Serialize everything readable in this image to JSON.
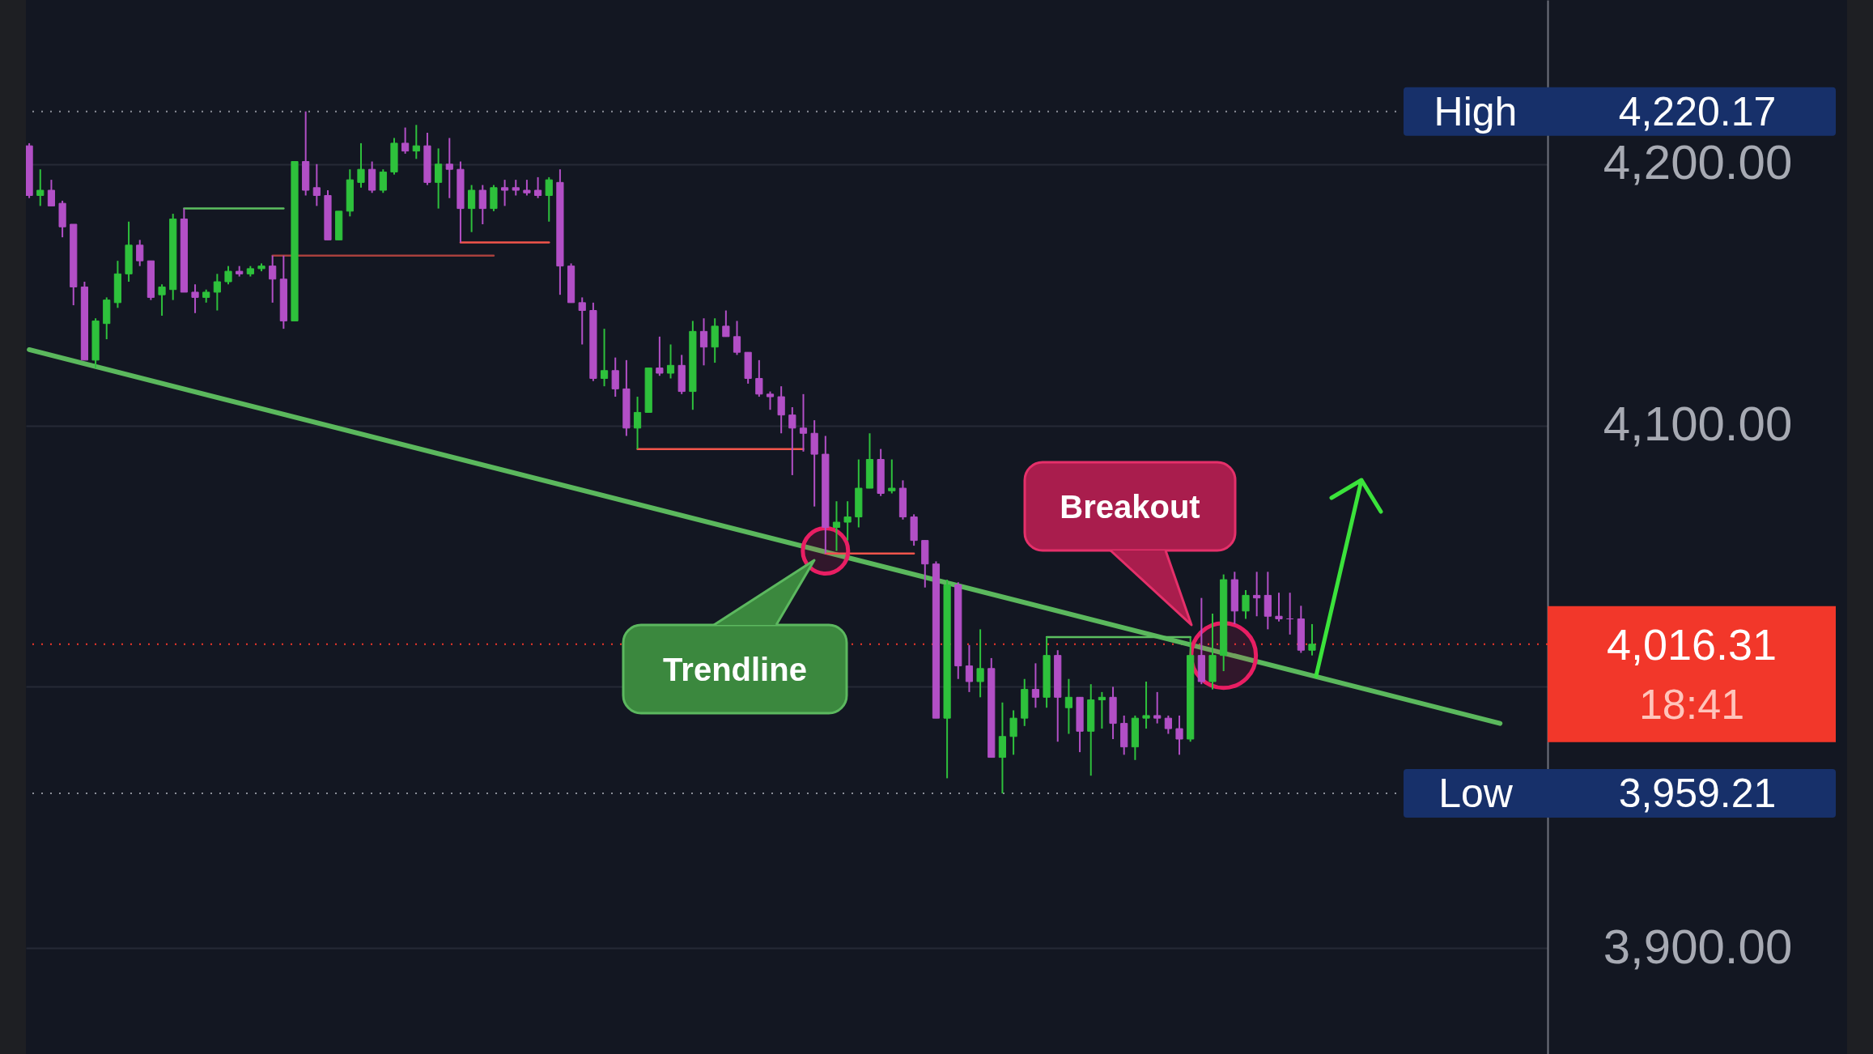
{
  "chart_data": {
    "type": "candlestick",
    "categories": [
      null,
      null,
      null,
      null,
      null,
      null,
      null,
      null,
      null,
      null,
      null,
      null,
      null,
      null,
      null,
      null,
      null,
      null,
      null,
      null,
      null,
      null,
      null,
      null,
      null,
      null,
      null,
      null,
      null,
      null,
      null,
      null,
      null,
      null,
      null,
      null,
      null,
      null,
      null,
      null,
      null,
      null,
      null,
      null,
      null,
      null,
      null,
      null,
      null,
      null,
      null,
      null,
      null,
      null,
      null,
      null,
      null,
      null,
      null,
      null,
      null,
      null,
      null,
      null,
      null,
      null,
      null,
      null,
      null,
      null,
      null,
      null,
      null,
      null,
      null,
      null,
      null,
      null,
      null,
      null,
      null,
      null,
      null,
      null,
      null,
      null,
      null,
      null,
      null,
      null,
      null,
      null,
      null,
      null,
      null,
      null,
      null,
      null,
      null,
      null,
      null,
      null,
      null,
      null,
      null,
      null,
      null,
      null,
      null,
      null,
      null,
      null,
      null,
      null,
      null,
      null,
      null,
      null,
      null,
      null,
      null,
      null,
      null,
      null,
      null,
      null,
      null,
      null,
      null,
      null,
      null,
      null,
      null,
      null,
      null,
      null,
      null,
      null
    ],
    "ohlc": [
      [
        4207,
        4208,
        4187,
        4188
      ],
      [
        4188,
        4198,
        4184,
        4190
      ],
      [
        4190,
        4194,
        4184,
        4184
      ],
      [
        4185,
        4186,
        4172,
        4176
      ],
      [
        4177,
        4177,
        4146,
        4153
      ],
      [
        4153,
        4155,
        4125,
        4125
      ],
      [
        4125,
        4141,
        4122,
        4140
      ],
      [
        4139,
        4149,
        4133,
        4148
      ],
      [
        4147,
        4163,
        4145,
        4158
      ],
      [
        4158,
        4178,
        4155,
        4169
      ],
      [
        4169,
        4171,
        4161,
        4163
      ],
      [
        4163,
        4163,
        4148,
        4149
      ],
      [
        4150,
        4154,
        4142,
        4153
      ],
      [
        4152,
        4181,
        4148,
        4179
      ],
      [
        4179,
        4183,
        4151,
        4151
      ],
      [
        4151,
        4154,
        4143,
        4149
      ],
      [
        4149,
        4152,
        4147,
        4151
      ],
      [
        4151,
        4158,
        4144,
        4155
      ],
      [
        4155,
        4161,
        4154,
        4159
      ],
      [
        4159,
        4161,
        4157,
        4158
      ],
      [
        4158,
        4161,
        4157,
        4160
      ],
      [
        4160,
        4162,
        4159,
        4161
      ],
      [
        4161,
        4165,
        4147,
        4156
      ],
      [
        4156,
        4165,
        4137,
        4140
      ],
      [
        4140,
        4201,
        4140,
        4201
      ],
      [
        4201,
        4220.17,
        4188,
        4190
      ],
      [
        4191,
        4200,
        4184,
        4188
      ],
      [
        4188,
        4190,
        4171,
        4171
      ],
      [
        4171,
        4182,
        4171,
        4182
      ],
      [
        4182,
        4198,
        4180,
        4194
      ],
      [
        4193,
        4208,
        4191,
        4198
      ],
      [
        4198,
        4201,
        4189,
        4190
      ],
      [
        4190,
        4198,
        4189,
        4197
      ],
      [
        4197,
        4210,
        4196,
        4208
      ],
      [
        4208,
        4214,
        4204,
        4205
      ],
      [
        4205,
        4215,
        4202,
        4207
      ],
      [
        4207,
        4212,
        4192,
        4193
      ],
      [
        4193,
        4206,
        4183,
        4200
      ],
      [
        4200,
        4210,
        4187,
        4198
      ],
      [
        4198,
        4201,
        4170,
        4183
      ],
      [
        4183,
        4192,
        4174,
        4190
      ],
      [
        4190,
        4192,
        4177,
        4183
      ],
      [
        4183,
        4192,
        4182,
        4191
      ],
      [
        4191,
        4194,
        4184,
        4190
      ],
      [
        4191,
        4194,
        4188,
        4190
      ],
      [
        4190,
        4194,
        4188,
        4189
      ],
      [
        4190,
        4195,
        4187,
        4188
      ],
      [
        4188,
        4195,
        4178,
        4194
      ],
      [
        4193,
        4198,
        4150,
        4161
      ],
      [
        4161,
        4162,
        4147,
        4147
      ],
      [
        4147,
        4149,
        4131,
        4144
      ],
      [
        4144,
        4147,
        4117,
        4118
      ],
      [
        4118,
        4137,
        4115,
        4121
      ],
      [
        4121,
        4126,
        4111,
        4114
      ],
      [
        4114,
        4125,
        4096,
        4099
      ],
      [
        4099,
        4111,
        4091,
        4105
      ],
      [
        4105,
        4122,
        4105,
        4122
      ],
      [
        4122,
        4134,
        4119,
        4120
      ],
      [
        4120,
        4131,
        4118,
        4123
      ],
      [
        4123,
        4127,
        4112,
        4113
      ],
      [
        4113,
        4140,
        4106,
        4136
      ],
      [
        4136,
        4141,
        4123,
        4130
      ],
      [
        4130,
        4141,
        4124,
        4138
      ],
      [
        4138,
        4144,
        4134,
        4134
      ],
      [
        4134,
        4140,
        4127,
        4128
      ],
      [
        4128,
        4128,
        4116,
        4118
      ],
      [
        4118,
        4125,
        4111,
        4112
      ],
      [
        4112,
        4113,
        4106,
        4111
      ],
      [
        4111,
        4115,
        4097,
        4104
      ],
      [
        4104,
        4107,
        4081,
        4099
      ],
      [
        4099,
        4112,
        4090,
        4097
      ],
      [
        4097,
        4102,
        4069,
        4089
      ],
      [
        4089,
        4096,
        4051,
        4061
      ],
      [
        4061,
        4071,
        4052,
        4063
      ],
      [
        4063,
        4071,
        4056,
        4065
      ],
      [
        4065,
        4087,
        4061,
        4076
      ],
      [
        4076,
        4097,
        4076,
        4087
      ],
      [
        4087,
        4091,
        4073,
        4074
      ],
      [
        4075,
        4087,
        4074,
        4076
      ],
      [
        4076,
        4079,
        4064,
        4065
      ],
      [
        4065,
        4066,
        4054,
        4056
      ],
      [
        4056,
        4056,
        4038,
        4047
      ],
      [
        4047,
        4048,
        3988,
        3988
      ],
      [
        3988,
        4041,
        3965,
        4039
      ],
      [
        4039,
        4040,
        4003,
        4008
      ],
      [
        4008,
        4016,
        3998,
        4002
      ],
      [
        4002,
        4022,
        3996,
        4007
      ],
      [
        4007,
        4011,
        3973,
        3973
      ],
      [
        3973,
        3994,
        3959.21,
        3981
      ],
      [
        3981,
        3991,
        3974,
        3988
      ],
      [
        3988,
        4003,
        3985,
        3999
      ],
      [
        3999,
        4009,
        3992,
        3996
      ],
      [
        3996,
        4019,
        3992,
        4012
      ],
      [
        4012,
        4014,
        3979,
        3996
      ],
      [
        3992,
        4003,
        3982,
        3996
      ],
      [
        3996,
        3996,
        3975,
        3983
      ],
      [
        3983,
        4001,
        3966,
        3995
      ],
      [
        3995,
        3998,
        3984,
        3996
      ],
      [
        3996,
        4000,
        3980,
        3986
      ],
      [
        3986,
        3989,
        3974,
        3977
      ],
      [
        3977,
        3989,
        3972,
        3988
      ],
      [
        3988,
        4002,
        3984,
        3989
      ],
      [
        3989,
        3998,
        3986,
        3988
      ],
      [
        3988,
        3989,
        3982,
        3984
      ],
      [
        3984,
        3989,
        3974,
        3980
      ],
      [
        3980,
        4019,
        3979,
        4012
      ],
      [
        4012,
        4034,
        4001,
        4002
      ],
      [
        4002,
        4028,
        3999,
        4012
      ],
      [
        4012,
        4043,
        4006,
        4041
      ],
      [
        4041,
        4044,
        4024,
        4029
      ],
      [
        4029,
        4037,
        4026,
        4035
      ],
      [
        4035,
        4044,
        4027,
        4034
      ],
      [
        4035,
        4044,
        4022,
        4027
      ],
      [
        4027,
        4036,
        4025,
        4026
      ],
      [
        4026,
        4036,
        4020,
        4026
      ],
      [
        4026,
        4031,
        4013,
        4014
      ],
      [
        4014,
        4024,
        4012,
        4016.31
      ],
      null,
      null,
      null,
      null,
      null,
      null,
      null,
      null,
      null,
      null,
      null,
      null,
      null,
      null,
      null,
      null,
      null,
      null,
      null,
      null,
      null
    ],
    "colors": [
      "#b24fc6",
      "#2ec13c",
      "#b24fc6",
      "#b24fc6",
      "#b24fc6",
      "#b24fc6",
      "#2ec13c",
      "#2ec13c",
      "#2ec13c",
      "#2ec13c",
      "#b24fc6",
      "#b24fc6",
      "#2ec13c",
      "#2ec13c",
      "#b24fc6",
      "#b24fc6",
      "#2ec13c",
      "#2ec13c",
      "#2ec13c",
      "#b24fc6",
      "#2ec13c",
      "#2ec13c",
      "#b24fc6",
      "#b24fc6",
      "#2ec13c",
      "#b24fc6",
      "#b24fc6",
      "#b24fc6",
      "#2ec13c",
      "#2ec13c",
      "#2ec13c",
      "#b24fc6",
      "#2ec13c",
      "#2ec13c",
      "#b24fc6",
      "#2ec13c",
      "#b24fc6",
      "#2ec13c",
      "#b24fc6",
      "#b24fc6",
      "#2ec13c",
      "#b24fc6",
      "#2ec13c",
      "#b24fc6",
      "#b24fc6",
      "#b24fc6",
      "#b24fc6",
      "#2ec13c",
      "#b24fc6",
      "#b24fc6",
      "#b24fc6",
      "#b24fc6",
      "#2ec13c",
      "#b24fc6",
      "#b24fc6",
      "#2ec13c",
      "#2ec13c",
      "#b24fc6",
      "#2ec13c",
      "#b24fc6",
      "#2ec13c",
      "#b24fc6",
      "#2ec13c",
      "#b24fc6",
      "#b24fc6",
      "#b24fc6",
      "#b24fc6",
      "#b24fc6",
      "#b24fc6",
      "#b24fc6",
      "#b24fc6",
      "#b24fc6",
      "#b24fc6",
      "#2ec13c",
      "#2ec13c",
      "#2ec13c",
      "#2ec13c",
      "#b24fc6",
      "#2ec13c",
      "#b24fc6",
      "#b24fc6",
      "#b24fc6",
      "#b24fc6",
      "#2ec13c",
      "#b24fc6",
      "#b24fc6",
      "#2ec13c",
      "#b24fc6",
      "#2ec13c",
      "#2ec13c",
      "#2ec13c",
      "#b24fc6",
      "#2ec13c",
      "#b24fc6",
      "#2ec13c",
      "#b24fc6",
      "#2ec13c",
      "#2ec13c",
      "#b24fc6",
      "#b24fc6",
      "#2ec13c",
      "#2ec13c",
      "#b24fc6",
      "#b24fc6",
      "#b24fc6",
      "#2ec13c",
      "#b24fc6",
      "#2ec13c",
      "#2ec13c",
      "#b24fc6",
      "#2ec13c",
      "#b24fc6",
      "#b24fc6",
      "#b24fc6",
      "#b24fc6",
      "#b24fc6",
      "#2ec13c",
      null,
      null,
      null,
      null,
      null,
      null,
      null,
      null,
      null,
      null,
      null,
      null,
      null,
      null,
      null,
      null,
      null,
      null,
      null,
      null,
      null
    ],
    "series": [
      {
        "type": "line",
        "color": "#5bb85d",
        "values": [
          4129,
          null,
          null,
          null,
          null,
          null,
          null,
          null,
          null,
          null,
          null,
          null,
          null,
          null,
          null,
          null,
          null,
          null,
          null,
          null,
          null,
          null,
          null,
          null,
          null,
          null,
          null,
          null,
          null,
          null,
          null,
          null,
          null,
          null,
          null,
          null,
          null,
          null,
          null,
          null,
          null,
          null,
          null,
          null,
          null,
          null,
          null,
          null,
          null,
          null,
          null,
          null,
          null,
          null,
          null,
          null,
          null,
          null,
          null,
          null,
          null,
          null,
          null,
          null,
          null,
          null,
          null,
          null,
          null,
          null,
          null,
          null,
          null,
          null,
          null,
          null,
          null,
          null,
          null,
          null,
          null,
          null,
          null,
          null,
          null,
          null,
          null,
          null,
          null,
          null,
          null,
          null,
          null,
          null,
          null,
          null,
          null,
          null,
          null,
          null,
          null,
          null,
          null,
          null,
          null,
          null,
          null,
          null,
          null,
          null,
          null,
          null,
          null,
          null,
          null,
          null,
          null,
          null,
          null,
          null,
          null,
          null,
          null,
          null,
          null,
          null,
          null,
          null,
          null,
          null,
          null,
          null,
          null,
          3986,
          null,
          null,
          null,
          null
        ]
      },
      {
        "type": "line",
        "color": "#5cbf60",
        "values": [
          null,
          null,
          null,
          null,
          null,
          null,
          null,
          null,
          null,
          null,
          null,
          null,
          null,
          null,
          4183,
          null,
          null,
          null,
          null,
          null,
          null,
          null,
          null,
          4183,
          null,
          null,
          null,
          null,
          null,
          null,
          null,
          null,
          null,
          null,
          null,
          null,
          null,
          null,
          null,
          null,
          null,
          null,
          null,
          null,
          null,
          null,
          null,
          null,
          null,
          null,
          null,
          null,
          null,
          null,
          null,
          null,
          null,
          null,
          null,
          null,
          null,
          null,
          null,
          null,
          null,
          null,
          null,
          null,
          null,
          null,
          null,
          null,
          null,
          null,
          null,
          null,
          null,
          null,
          null,
          null,
          null,
          null,
          null,
          null,
          null,
          null,
          null,
          null,
          null,
          null,
          null,
          null,
          null,
          null,
          null,
          null,
          null,
          null,
          null,
          null,
          null,
          null,
          null,
          null,
          null,
          null,
          null,
          null,
          null,
          null,
          null,
          null,
          null,
          null,
          null,
          null,
          null,
          null,
          null,
          null,
          null,
          null,
          null,
          null,
          null,
          null,
          null,
          null,
          null,
          null,
          null,
          null,
          null,
          null,
          null,
          null,
          null,
          null
        ]
      },
      {
        "type": "line",
        "color": "#a8403d",
        "values": [
          null,
          null,
          null,
          null,
          null,
          null,
          null,
          null,
          null,
          null,
          null,
          null,
          null,
          null,
          null,
          null,
          null,
          null,
          null,
          null,
          null,
          null,
          4165,
          null,
          null,
          null,
          null,
          null,
          null,
          null,
          null,
          null,
          null,
          null,
          null,
          null,
          null,
          null,
          null,
          null,
          null,
          null,
          4165,
          null,
          null,
          null,
          null,
          null,
          null,
          null,
          null,
          null,
          null,
          null,
          null,
          null,
          null,
          null,
          null,
          null,
          null,
          null,
          null,
          null,
          null,
          null,
          null,
          null,
          null,
          null,
          null,
          null,
          null,
          null,
          null,
          null,
          null,
          null,
          null,
          null,
          null,
          null,
          null,
          null,
          null,
          null,
          null,
          null,
          null,
          null,
          null,
          null,
          null,
          null,
          null,
          null,
          null,
          null,
          null,
          null,
          null,
          null,
          null,
          null,
          null,
          null,
          null,
          null,
          null,
          null,
          null,
          null,
          null,
          null,
          null,
          null,
          null,
          null,
          null,
          null,
          null,
          null,
          null,
          null,
          null,
          null,
          null,
          null,
          null,
          null,
          null,
          null,
          null,
          null,
          null,
          null,
          null,
          null
        ]
      },
      {
        "type": "line",
        "color": "#f2554b",
        "values": [
          null,
          null,
          null,
          null,
          null,
          null,
          null,
          null,
          null,
          null,
          null,
          null,
          null,
          null,
          null,
          null,
          null,
          null,
          null,
          null,
          null,
          null,
          null,
          null,
          null,
          null,
          null,
          null,
          null,
          null,
          null,
          null,
          null,
          null,
          null,
          null,
          null,
          null,
          null,
          4170,
          null,
          null,
          null,
          null,
          null,
          null,
          null,
          4170,
          null,
          null,
          null,
          null,
          null,
          null,
          null,
          null,
          null,
          null,
          null,
          null,
          null,
          null,
          null,
          null,
          null,
          null,
          null,
          null,
          null,
          null,
          null,
          null,
          null,
          null,
          null,
          null,
          null,
          null,
          null,
          null,
          null,
          null,
          null,
          null,
          null,
          null,
          null,
          null,
          null,
          null,
          null,
          null,
          null,
          null,
          null,
          null,
          null,
          null,
          null,
          null,
          null,
          null,
          null,
          null,
          null,
          null,
          null,
          null,
          null,
          null,
          null,
          null,
          null,
          null,
          null,
          null,
          null,
          null,
          null,
          null,
          null,
          null,
          null,
          null,
          null,
          null,
          null,
          null,
          null,
          null,
          null,
          null,
          null,
          null,
          null,
          null,
          null,
          null
        ]
      },
      {
        "type": "line",
        "color": "#f2554b",
        "values": [
          null,
          null,
          null,
          null,
          null,
          null,
          null,
          null,
          null,
          null,
          null,
          null,
          null,
          null,
          null,
          null,
          null,
          null,
          null,
          null,
          null,
          null,
          null,
          null,
          null,
          null,
          null,
          null,
          null,
          null,
          null,
          null,
          null,
          null,
          null,
          null,
          null,
          null,
          null,
          null,
          null,
          null,
          null,
          null,
          null,
          null,
          null,
          null,
          null,
          null,
          null,
          null,
          null,
          null,
          null,
          4091,
          null,
          null,
          null,
          null,
          null,
          null,
          null,
          null,
          null,
          null,
          null,
          null,
          null,
          null,
          4091,
          null,
          null,
          null,
          null,
          null,
          null,
          null,
          null,
          null,
          null,
          null,
          null,
          null,
          null,
          null,
          null,
          null,
          null,
          null,
          null,
          null,
          null,
          null,
          null,
          null,
          null,
          null,
          null,
          null,
          null,
          null,
          null,
          null,
          null,
          null,
          null,
          null,
          null,
          null,
          null,
          null,
          null,
          null,
          null,
          null,
          null,
          null,
          null,
          null,
          null,
          null,
          null,
          null,
          null,
          null,
          null,
          null,
          null,
          null,
          null,
          null,
          null,
          null,
          null,
          null,
          null,
          null
        ]
      },
      {
        "type": "line",
        "color": "#f2554b",
        "values": [
          null,
          null,
          null,
          null,
          null,
          null,
          null,
          null,
          null,
          null,
          null,
          null,
          null,
          null,
          null,
          null,
          null,
          null,
          null,
          null,
          null,
          null,
          null,
          null,
          null,
          null,
          null,
          null,
          null,
          null,
          null,
          null,
          null,
          null,
          null,
          null,
          null,
          null,
          null,
          null,
          null,
          null,
          null,
          null,
          null,
          null,
          null,
          null,
          null,
          null,
          null,
          null,
          null,
          null,
          null,
          null,
          null,
          null,
          null,
          null,
          null,
          null,
          null,
          null,
          null,
          null,
          null,
          null,
          null,
          null,
          null,
          null,
          4051,
          null,
          null,
          null,
          null,
          null,
          null,
          null,
          4051,
          null,
          null,
          null,
          null,
          null,
          null,
          null,
          null,
          null,
          null,
          null,
          null,
          null,
          null,
          null,
          null,
          null,
          null,
          null,
          null,
          null,
          null,
          null,
          null,
          null,
          null,
          null,
          null,
          null,
          null,
          null,
          null,
          null,
          null,
          null,
          null,
          null,
          null,
          null,
          null,
          null,
          null,
          null,
          null,
          null,
          null,
          null,
          null,
          null,
          null,
          null,
          null,
          null,
          null,
          null,
          null,
          null
        ]
      },
      {
        "type": "line",
        "color": "#5cbf60",
        "values": [
          null,
          null,
          null,
          null,
          null,
          null,
          null,
          null,
          null,
          null,
          null,
          null,
          null,
          null,
          null,
          null,
          null,
          null,
          null,
          null,
          null,
          null,
          null,
          null,
          null,
          null,
          null,
          null,
          null,
          null,
          null,
          null,
          null,
          null,
          null,
          null,
          null,
          null,
          null,
          null,
          null,
          null,
          null,
          null,
          null,
          null,
          null,
          null,
          null,
          null,
          null,
          null,
          null,
          null,
          null,
          null,
          null,
          null,
          null,
          null,
          null,
          null,
          null,
          null,
          null,
          null,
          null,
          null,
          null,
          null,
          null,
          null,
          null,
          null,
          null,
          null,
          null,
          null,
          null,
          null,
          null,
          null,
          null,
          null,
          null,
          null,
          null,
          null,
          null,
          null,
          null,
          null,
          4019,
          null,
          null,
          null,
          null,
          null,
          null,
          null,
          null,
          null,
          null,
          null,
          null,
          4019,
          null,
          null,
          null,
          null,
          null,
          null,
          null,
          null,
          null,
          null,
          null,
          null,
          null,
          null,
          null,
          null,
          null,
          null,
          null,
          null,
          null,
          null,
          null,
          null,
          null,
          null,
          null,
          null,
          null,
          null,
          null,
          null
        ]
      },
      {
        "type": "bubble",
        "color": "#e91e63",
        "values": [
          null,
          null,
          null,
          null,
          null,
          null,
          null,
          null,
          null,
          null,
          null,
          null,
          null,
          null,
          null,
          null,
          null,
          null,
          null,
          null,
          null,
          null,
          null,
          null,
          null,
          null,
          null,
          null,
          null,
          null,
          null,
          null,
          null,
          null,
          null,
          null,
          null,
          null,
          null,
          null,
          null,
          null,
          null,
          null,
          null,
          null,
          null,
          null,
          null,
          null,
          null,
          null,
          null,
          null,
          null,
          null,
          null,
          null,
          null,
          null,
          null,
          null,
          null,
          null,
          null,
          null,
          null,
          null,
          null,
          null,
          null,
          null,
          4052,
          null,
          null,
          null,
          null,
          null,
          null,
          null,
          null,
          null,
          null,
          null,
          null,
          null,
          null,
          null,
          null,
          null,
          null,
          null,
          null,
          null,
          null,
          null,
          null,
          null,
          null,
          null,
          null,
          null,
          null,
          null,
          null,
          null,
          null,
          null,
          4012,
          null,
          null,
          null,
          null,
          null,
          null,
          null,
          null,
          null,
          null,
          null,
          null,
          null,
          null,
          null,
          null,
          null,
          null,
          null,
          null,
          null,
          null,
          null,
          null,
          null,
          null,
          null,
          null,
          null
        ],
        "sizes": [
          null,
          null,
          null,
          null,
          null,
          null,
          null,
          null,
          null,
          null,
          null,
          null,
          null,
          null,
          null,
          null,
          null,
          null,
          null,
          null,
          null,
          null,
          null,
          null,
          null,
          null,
          null,
          null,
          null,
          null,
          null,
          null,
          null,
          null,
          null,
          null,
          null,
          null,
          null,
          null,
          null,
          null,
          null,
          null,
          null,
          null,
          null,
          null,
          null,
          null,
          null,
          null,
          null,
          null,
          null,
          null,
          null,
          null,
          null,
          null,
          null,
          null,
          null,
          null,
          null,
          null,
          null,
          null,
          null,
          null,
          null,
          null,
          0.49,
          null,
          null,
          null,
          null,
          null,
          null,
          null,
          null,
          null,
          null,
          null,
          null,
          null,
          null,
          null,
          null,
          null,
          null,
          null,
          null,
          null,
          null,
          null,
          null,
          null,
          null,
          null,
          null,
          null,
          null,
          null,
          null,
          null,
          null,
          null,
          1,
          null,
          null,
          null,
          null,
          null,
          null,
          null,
          null,
          null,
          null,
          null,
          null,
          null,
          null,
          null,
          null,
          null,
          null,
          null,
          null,
          null,
          null,
          null,
          null,
          null,
          null,
          null,
          null,
          null
        ]
      }
    ],
    "ylim": [
      3859.5,
      4262.8
    ],
    "yticks": [
      {
        "value": 3900,
        "label": "3,900.00"
      },
      {
        "value": 4000,
        "label": null
      },
      {
        "value": 4100,
        "label": "4,100.00"
      },
      {
        "value": 4200,
        "label": "4,200.00"
      }
    ],
    "grid": "y",
    "tick_labels": "y",
    "ref_lines": [
      {
        "axis": "y",
        "value": 4220.17,
        "label": "High 4,220.17",
        "color": "#8c8f99",
        "line_style": "dotted"
      },
      {
        "axis": "y",
        "value": 3959.21,
        "label": "Low 3,959.21",
        "color": "#8c8f99",
        "line_style": "dotted"
      },
      {
        "axis": "y",
        "value": 4016.31,
        "label": "4,016.31",
        "color": "#f2372a",
        "line_style": "dotted"
      }
    ],
    "annotations": [
      "Trendline",
      "Breakout",
      "18:41"
    ]
  }
}
